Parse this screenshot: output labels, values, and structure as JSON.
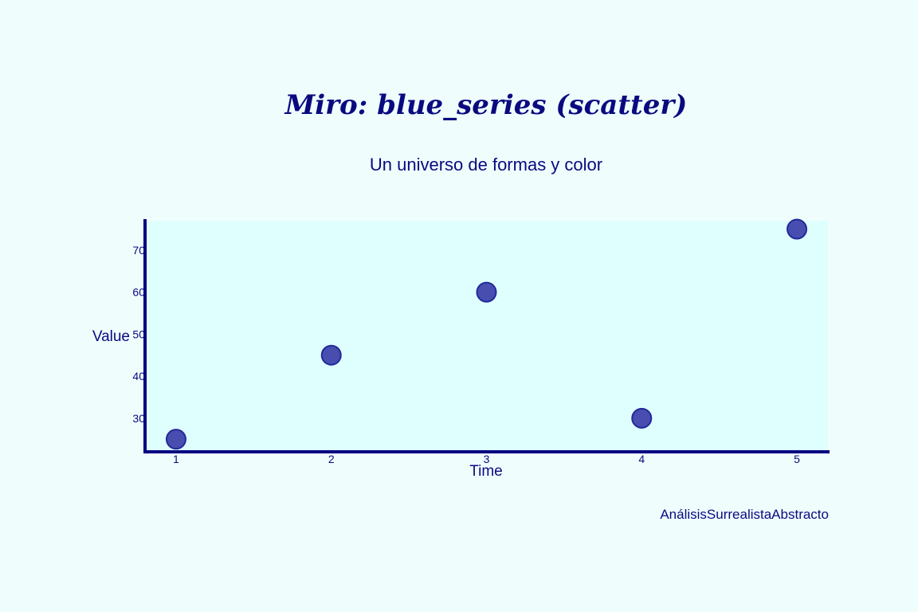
{
  "chart_data": {
    "type": "scatter",
    "title": "Miro: blue_series (scatter)",
    "subtitle": "Un universo de formas y color",
    "xlabel": "Time",
    "ylabel": "Value",
    "x": [
      1,
      2,
      3,
      4,
      5
    ],
    "y": [
      25,
      45,
      60,
      30,
      75
    ],
    "xlim": [
      0.8,
      5.2
    ],
    "ylim": [
      22,
      77
    ],
    "xticks": [
      "1",
      "2",
      "3",
      "4",
      "5"
    ],
    "yticks": [
      "30",
      "40",
      "50",
      "60",
      "70"
    ],
    "grid": false,
    "legend": "none",
    "footer": "AnálisisSurrealistaAbstracto"
  },
  "colors": {
    "background": "#effefd",
    "plot_background": "#dffffe",
    "axis": "#000080",
    "marker_fill": "#3b3fa8",
    "marker_stroke": "#23289a",
    "text": "#0a0a80"
  }
}
